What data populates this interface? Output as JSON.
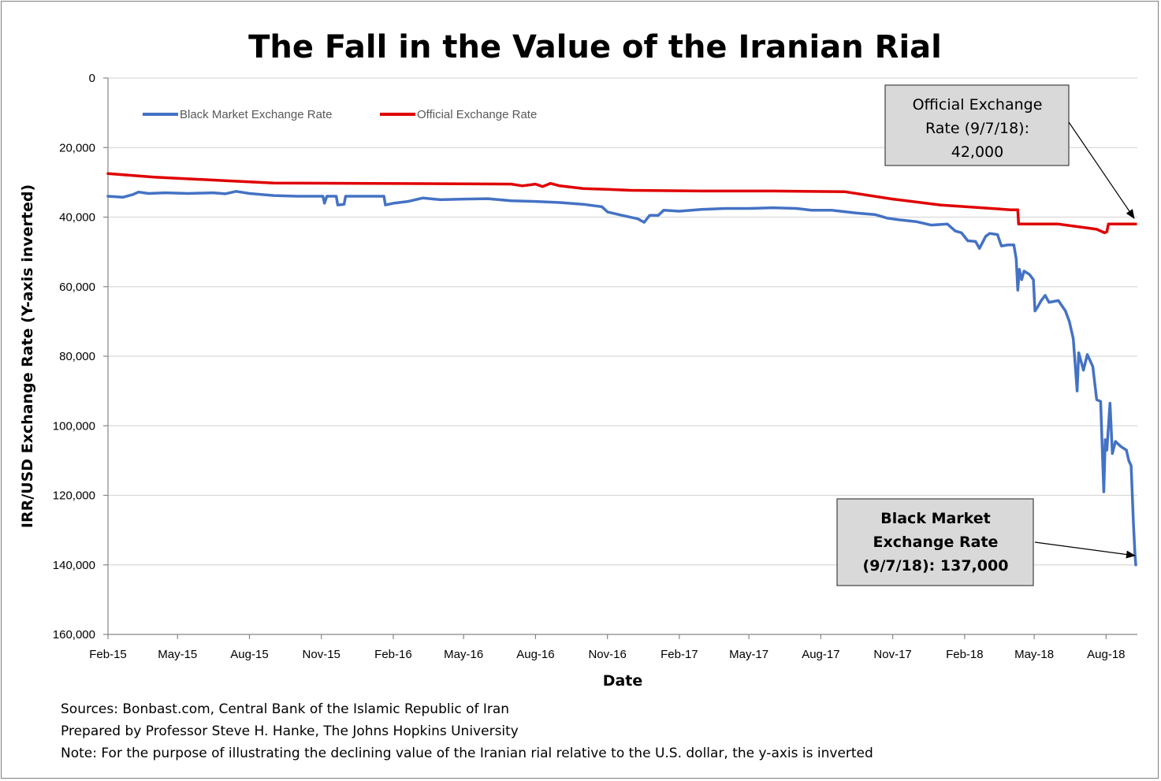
{
  "chart_data": {
    "type": "line",
    "title": "The Fall in the Value of the Iranian Rial",
    "xlabel": "Date",
    "ylabel": "IRR/USD Exchange Rate (Y-axis inverted)",
    "y_inverted": true,
    "ylim": [
      0,
      160000
    ],
    "yticks": [
      0,
      20000,
      40000,
      60000,
      80000,
      100000,
      120000,
      140000,
      160000
    ],
    "ytick_labels": [
      "0",
      "20,000",
      "40,000",
      "60,000",
      "80,000",
      "100,000",
      "120,000",
      "140,000",
      "160,000"
    ],
    "xlim": [
      "2015-02-01",
      "2018-09-10"
    ],
    "xticks": [
      "2015-02-01",
      "2015-05-01",
      "2015-08-01",
      "2015-11-01",
      "2016-02-01",
      "2016-05-01",
      "2016-08-01",
      "2016-11-01",
      "2017-02-01",
      "2017-05-01",
      "2017-08-01",
      "2017-11-01",
      "2018-02-01",
      "2018-05-01",
      "2018-08-01"
    ],
    "xtick_labels": [
      "Feb-15",
      "May-15",
      "Aug-15",
      "Nov-15",
      "Feb-16",
      "May-16",
      "Aug-16",
      "Nov-16",
      "Feb-17",
      "May-17",
      "Aug-17",
      "Nov-17",
      "Feb-18",
      "May-18",
      "Aug-18"
    ],
    "grid": "horizontal",
    "legend_position": "top-left",
    "series": [
      {
        "name": "Black Market Exchange Rate",
        "color": "#4472c4",
        "points": [
          [
            "2015-02-01",
            34000
          ],
          [
            "2015-02-20",
            34300
          ],
          [
            "2015-03-05",
            33500
          ],
          [
            "2015-03-12",
            32800
          ],
          [
            "2015-03-25",
            33200
          ],
          [
            "2015-04-15",
            33000
          ],
          [
            "2015-05-15",
            33200
          ],
          [
            "2015-06-15",
            33000
          ],
          [
            "2015-07-01",
            33300
          ],
          [
            "2015-07-15",
            32600
          ],
          [
            "2015-08-01",
            33200
          ],
          [
            "2015-09-01",
            33800
          ],
          [
            "2015-10-01",
            34000
          ],
          [
            "2015-10-20",
            34000
          ],
          [
            "2015-11-03",
            34000
          ],
          [
            "2015-11-05",
            36000
          ],
          [
            "2015-11-08",
            34000
          ],
          [
            "2015-11-20",
            34000
          ],
          [
            "2015-11-22",
            36500
          ],
          [
            "2015-11-30",
            36300
          ],
          [
            "2015-12-02",
            34000
          ],
          [
            "2016-01-20",
            34000
          ],
          [
            "2016-01-22",
            36500
          ],
          [
            "2016-02-01",
            36000
          ],
          [
            "2016-02-20",
            35500
          ],
          [
            "2016-03-10",
            34500
          ],
          [
            "2016-04-01",
            35000
          ],
          [
            "2016-05-01",
            34800
          ],
          [
            "2016-06-01",
            34700
          ],
          [
            "2016-07-01",
            35300
          ],
          [
            "2016-08-01",
            35500
          ],
          [
            "2016-09-01",
            35800
          ],
          [
            "2016-10-01",
            36300
          ],
          [
            "2016-10-25",
            37000
          ],
          [
            "2016-11-01",
            38500
          ],
          [
            "2016-11-20",
            39500
          ],
          [
            "2016-12-10",
            40500
          ],
          [
            "2016-12-18",
            41500
          ],
          [
            "2016-12-25",
            39500
          ],
          [
            "2017-01-05",
            39500
          ],
          [
            "2017-01-12",
            38000
          ],
          [
            "2017-02-01",
            38300
          ],
          [
            "2017-03-01",
            37800
          ],
          [
            "2017-04-01",
            37500
          ],
          [
            "2017-05-01",
            37500
          ],
          [
            "2017-06-01",
            37300
          ],
          [
            "2017-07-01",
            37500
          ],
          [
            "2017-07-20",
            38000
          ],
          [
            "2017-08-15",
            38000
          ],
          [
            "2017-09-15",
            38800
          ],
          [
            "2017-10-10",
            39300
          ],
          [
            "2017-10-25",
            40300
          ],
          [
            "2017-11-10",
            40800
          ],
          [
            "2017-12-01",
            41300
          ],
          [
            "2017-12-20",
            42300
          ],
          [
            "2018-01-10",
            42000
          ],
          [
            "2018-01-20",
            44000
          ],
          [
            "2018-01-28",
            44500
          ],
          [
            "2018-02-05",
            46800
          ],
          [
            "2018-02-15",
            47000
          ],
          [
            "2018-02-20",
            49000
          ],
          [
            "2018-02-28",
            45500
          ],
          [
            "2018-03-05",
            44700
          ],
          [
            "2018-03-15",
            45000
          ],
          [
            "2018-03-20",
            48300
          ],
          [
            "2018-03-28",
            48000
          ],
          [
            "2018-04-05",
            48000
          ],
          [
            "2018-04-08",
            52000
          ],
          [
            "2018-04-10",
            61000
          ],
          [
            "2018-04-12",
            55000
          ],
          [
            "2018-04-15",
            58000
          ],
          [
            "2018-04-18",
            55500
          ],
          [
            "2018-04-25",
            56500
          ],
          [
            "2018-04-30",
            58000
          ],
          [
            "2018-05-02",
            67000
          ],
          [
            "2018-05-05",
            66000
          ],
          [
            "2018-05-10",
            64000
          ],
          [
            "2018-05-15",
            62500
          ],
          [
            "2018-05-20",
            64500
          ],
          [
            "2018-06-01",
            64000
          ],
          [
            "2018-06-10",
            67000
          ],
          [
            "2018-06-15",
            70000
          ],
          [
            "2018-06-20",
            75000
          ],
          [
            "2018-06-25",
            90000
          ],
          [
            "2018-06-27",
            79000
          ],
          [
            "2018-07-03",
            84000
          ],
          [
            "2018-07-08",
            79500
          ],
          [
            "2018-07-15",
            83000
          ],
          [
            "2018-07-20",
            92500
          ],
          [
            "2018-07-25",
            93000
          ],
          [
            "2018-07-29",
            119000
          ],
          [
            "2018-07-31",
            104000
          ],
          [
            "2018-08-02",
            107000
          ],
          [
            "2018-08-06",
            93500
          ],
          [
            "2018-08-09",
            108000
          ],
          [
            "2018-08-13",
            104500
          ],
          [
            "2018-08-20",
            106000
          ],
          [
            "2018-08-27",
            107000
          ],
          [
            "2018-08-30",
            110000
          ],
          [
            "2018-09-02",
            111500
          ],
          [
            "2018-09-05",
            128000
          ],
          [
            "2018-09-07",
            137000
          ],
          [
            "2018-09-08",
            140000
          ]
        ]
      },
      {
        "name": "Official Exchange Rate",
        "color": "#e00000",
        "points": [
          [
            "2015-02-01",
            27500
          ],
          [
            "2015-04-01",
            28500
          ],
          [
            "2015-07-01",
            29500
          ],
          [
            "2015-09-01",
            30200
          ],
          [
            "2016-01-01",
            30300
          ],
          [
            "2016-07-01",
            30500
          ],
          [
            "2016-07-15",
            31000
          ],
          [
            "2016-08-01",
            30500
          ],
          [
            "2016-08-10",
            31200
          ],
          [
            "2016-08-20",
            30300
          ],
          [
            "2016-09-01",
            31000
          ],
          [
            "2016-10-01",
            31800
          ],
          [
            "2016-11-01",
            32000
          ],
          [
            "2016-12-01",
            32300
          ],
          [
            "2017-03-01",
            32500
          ],
          [
            "2017-06-01",
            32500
          ],
          [
            "2017-09-01",
            32700
          ],
          [
            "2017-11-01",
            34800
          ],
          [
            "2018-01-01",
            36500
          ],
          [
            "2018-04-01",
            37900
          ],
          [
            "2018-04-10",
            37900
          ],
          [
            "2018-04-11",
            42000
          ],
          [
            "2018-06-01",
            42000
          ],
          [
            "2018-07-20",
            43500
          ],
          [
            "2018-07-30",
            44500
          ],
          [
            "2018-08-02",
            44200
          ],
          [
            "2018-08-04",
            42000
          ],
          [
            "2018-09-08",
            42000
          ]
        ]
      }
    ],
    "annotations": [
      {
        "lines": [
          "Official Exchange",
          "Rate (9/7/18):",
          "42,000"
        ],
        "bold": false,
        "target": [
          "2018-09-07",
          42000
        ]
      },
      {
        "lines": [
          "Black Market",
          "Exchange Rate",
          "(9/7/18): 137,000"
        ],
        "bold": true,
        "target": [
          "2018-09-07",
          137000
        ]
      }
    ]
  },
  "notes": [
    "Sources: Bonbast.com, Central Bank of the Islamic Republic of Iran",
    "Prepared by Professor Steve H. Hanke, The Johns Hopkins University",
    "Note: For the purpose of illustrating the declining value of the Iranian rial relative to the U.S. dollar, the y-axis is inverted"
  ]
}
